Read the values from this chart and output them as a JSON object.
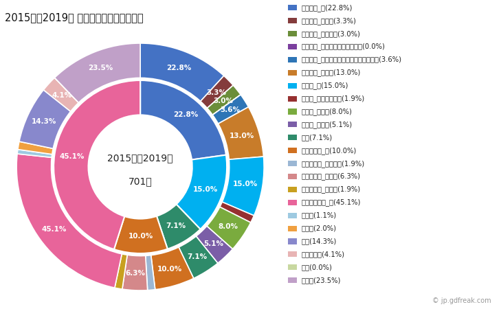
{
  "title": "2015年～2019年 上市町の女性の死因構成",
  "center_text_line1": "2015年～2019年",
  "center_text_line2": "701人",
  "background_color": "#ffffff",
  "outer_ring": [
    {
      "label": "悪性腫瘍_計(22.8%)",
      "value": 22.8,
      "color": "#4472c4",
      "pct_label": "22.8%"
    },
    {
      "label": "悪性腫瘍_胃がん(3.3%)",
      "value": 3.3,
      "color": "#843c3c",
      "pct_label": "3.3%"
    },
    {
      "label": "悪性腫瘍_大腸がん(3.0%)",
      "value": 3.0,
      "color": "#6b8e3a",
      "pct_label": "3.0%"
    },
    {
      "label": "悪性腫瘍_肝がん・肝内胆管がん(0.0%)",
      "value": 0.001,
      "color": "#7b3f9e",
      "pct_label": ""
    },
    {
      "label": "悪性腫瘍_気管がん・気管支がん・肺がん(3.6%)",
      "value": 3.6,
      "color": "#2e75b6",
      "pct_label": "3.6%"
    },
    {
      "label": "悪性腫瘍_その他(13.0%)",
      "value": 13.0,
      "color": "#c87c2a",
      "pct_label": "13.0%"
    },
    {
      "label": "心疾患_計(15.0%)",
      "value": 15.0,
      "color": "#00b0f0",
      "pct_label": "15.0%"
    },
    {
      "label": "心疾患_急性心筋梗塞(1.9%)",
      "value": 1.9,
      "color": "#963030",
      "pct_label": ""
    },
    {
      "label": "心疾患_心不全(8.0%)",
      "value": 8.0,
      "color": "#7aab3e",
      "pct_label": "8.0%"
    },
    {
      "label": "心疾患_その他(5.1%)",
      "value": 5.1,
      "color": "#7b5ea7",
      "pct_label": "5.1%"
    },
    {
      "label": "肺炎(7.1%)",
      "value": 7.1,
      "color": "#2e8b6a",
      "pct_label": "7.1%"
    },
    {
      "label": "脳血管疾患_計(10.0%)",
      "value": 10.0,
      "color": "#d07020",
      "pct_label": "10.0%"
    },
    {
      "label": "脳血管疾患_脳内出血(1.9%)",
      "value": 1.9,
      "color": "#9bb7d4",
      "pct_label": ""
    },
    {
      "label": "脳血管疾患_脳梗塞(6.3%)",
      "value": 6.3,
      "color": "#d4888a",
      "pct_label": "6.3%"
    },
    {
      "label": "脳血管疾患_その他(1.9%)",
      "value": 1.9,
      "color": "#c8a020",
      "pct_label": ""
    },
    {
      "label": "その他の死因_計(45.1%)",
      "value": 45.1,
      "color": "#e8649a",
      "pct_label": "45.1%"
    },
    {
      "label": "肝疾患(1.1%)",
      "value": 1.1,
      "color": "#9ecae1",
      "pct_label": ""
    },
    {
      "label": "腎不全(2.0%)",
      "value": 2.0,
      "color": "#f0a040",
      "pct_label": ""
    },
    {
      "label": "老衰(14.3%)",
      "value": 14.3,
      "color": "#8888cc",
      "pct_label": "14.3%"
    },
    {
      "label": "不慮の事故(4.1%)",
      "value": 4.1,
      "color": "#e8b4b4",
      "pct_label": "4.1%"
    },
    {
      "label": "自殺(0.0%)",
      "value": 0.001,
      "color": "#c8d8a0",
      "pct_label": ""
    },
    {
      "label": "その他(23.5%)",
      "value": 23.5,
      "color": "#c0a0c8",
      "pct_label": "23.5%"
    }
  ],
  "inner_ring": [
    {
      "label": "悪性腫瘍_計",
      "value": 22.8,
      "color": "#4472c4",
      "pct_label": "22.8%"
    },
    {
      "label": "心疾患_計",
      "value": 15.0,
      "color": "#00b0f0",
      "pct_label": "15.0%"
    },
    {
      "label": "肺炎",
      "value": 7.1,
      "color": "#2e8b6a",
      "pct_label": "7.1%"
    },
    {
      "label": "脳血管疾患_計",
      "value": 10.0,
      "color": "#d07020",
      "pct_label": "10.0%"
    },
    {
      "label": "その他の死因_計",
      "value": 45.1,
      "color": "#e8649a",
      "pct_label": "45.1%"
    }
  ],
  "label_fontsize": 7.5,
  "title_fontsize": 10.5
}
